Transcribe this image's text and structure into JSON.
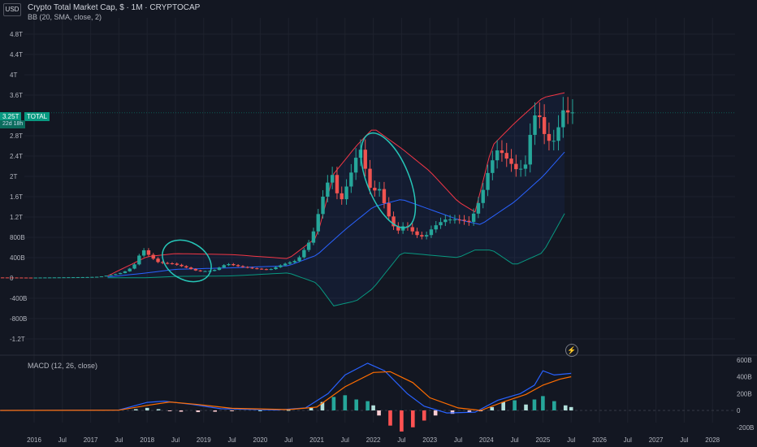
{
  "header": {
    "currency": "USD",
    "title": "Crypto Total Market Cap, $ · 1M · CRYPTOCAP",
    "indicator_bb": "BB (20, SMA, close, 2)",
    "indicator_macd": "MACD (12, 26, close)",
    "last_price": "3.25T",
    "symbol": "TOTAL",
    "countdown": "22d 18h"
  },
  "colors": {
    "background": "#131722",
    "up": "#26a69a",
    "down": "#ef5350",
    "bb_basis": "#2962ff",
    "bb_upper": "#f23645",
    "bb_lower": "#089981",
    "macd_line": "#2962ff",
    "signal_line": "#ff6d00",
    "annotation": "#26c6b8"
  },
  "chart_data": [
    {
      "type": "candlestick",
      "title": "Crypto Total Market Cap, $ · 1M · CRYPTOCAP",
      "y_unit": "USD",
      "ylim": [
        -1400000000000.0,
        5000000000000.0
      ],
      "y_ticks": [
        {
          "v": 4800000000000.0,
          "label": "4.8T"
        },
        {
          "v": 4400000000000.0,
          "label": "4.4T"
        },
        {
          "v": 4000000000000.0,
          "label": "4T"
        },
        {
          "v": 3600000000000.0,
          "label": "3.6T"
        },
        {
          "v": 2800000000000.0,
          "label": "2.8T"
        },
        {
          "v": 2400000000000.0,
          "label": "2.4T"
        },
        {
          "v": 2000000000000.0,
          "label": "2T"
        },
        {
          "v": 1600000000000.0,
          "label": "1.6T"
        },
        {
          "v": 1200000000000.0,
          "label": "1.2T"
        },
        {
          "v": 800000000000.0,
          "label": "800B"
        },
        {
          "v": 400000000000.0,
          "label": "400B"
        },
        {
          "v": 0,
          "label": "0"
        },
        {
          "v": -400000000000.0,
          "label": "-400B"
        },
        {
          "v": -800000000000.0,
          "label": "-800B"
        },
        {
          "v": -1200000000000.0,
          "label": "-1.2T"
        }
      ],
      "x_ticks": [
        {
          "t": 2016.0,
          "label": "2016"
        },
        {
          "t": 2016.5,
          "label": "Jul"
        },
        {
          "t": 2017.0,
          "label": "2017"
        },
        {
          "t": 2017.5,
          "label": "Jul"
        },
        {
          "t": 2018.0,
          "label": "2018"
        },
        {
          "t": 2018.5,
          "label": "Jul"
        },
        {
          "t": 2019.0,
          "label": "2019"
        },
        {
          "t": 2019.5,
          "label": "Jul"
        },
        {
          "t": 2020.0,
          "label": "2020"
        },
        {
          "t": 2020.5,
          "label": "Jul"
        },
        {
          "t": 2021.0,
          "label": "2021"
        },
        {
          "t": 2021.5,
          "label": "Jul"
        },
        {
          "t": 2022.0,
          "label": "2022"
        },
        {
          "t": 2022.5,
          "label": "Jul"
        },
        {
          "t": 2023.0,
          "label": "2023"
        },
        {
          "t": 2023.5,
          "label": "Jul"
        },
        {
          "t": 2024.0,
          "label": "2024"
        },
        {
          "t": 2024.5,
          "label": "Jul"
        },
        {
          "t": 2025.0,
          "label": "2025"
        },
        {
          "t": 2025.5,
          "label": "Jul"
        },
        {
          "t": 2026.0,
          "label": "2026"
        },
        {
          "t": 2026.5,
          "label": "Jul"
        },
        {
          "t": 2027.0,
          "label": "2027"
        },
        {
          "t": 2027.5,
          "label": "Jul"
        },
        {
          "t": 2028.0,
          "label": "2028"
        }
      ],
      "key_points": [
        [
          2015.4,
          10000000000.0
        ],
        [
          2016.0,
          7000000000.0
        ],
        [
          2016.5,
          12000000000.0
        ],
        [
          2017.0,
          18000000000.0
        ],
        [
          2017.2,
          25000000000.0
        ],
        [
          2017.4,
          60000000000.0
        ],
        [
          2017.55,
          90000000000.0
        ],
        [
          2017.7,
          150000000000.0
        ],
        [
          2017.85,
          300000000000.0
        ],
        [
          2017.95,
          580000000000.0
        ],
        [
          2018.1,
          420000000000.0
        ],
        [
          2018.25,
          300000000000.0
        ],
        [
          2018.5,
          280000000000.0
        ],
        [
          2018.75,
          200000000000.0
        ],
        [
          2018.95,
          130000000000.0
        ],
        [
          2019.2,
          140000000000.0
        ],
        [
          2019.45,
          280000000000.0
        ],
        [
          2019.7,
          220000000000.0
        ],
        [
          2019.9,
          190000000000.0
        ],
        [
          2020.2,
          160000000000.0
        ],
        [
          2020.45,
          270000000000.0
        ],
        [
          2020.7,
          350000000000.0
        ],
        [
          2020.95,
          780000000000.0
        ],
        [
          2021.15,
          1600000000000.0
        ],
        [
          2021.3,
          2100000000000.0
        ],
        [
          2021.45,
          1450000000000.0
        ],
        [
          2021.6,
          1900000000000.0
        ],
        [
          2021.8,
          2600000000000.0
        ],
        [
          2022.0,
          1700000000000.0
        ],
        [
          2022.15,
          1750000000000.0
        ],
        [
          2022.3,
          1250000000000.0
        ],
        [
          2022.45,
          900000000000.0
        ],
        [
          2022.6,
          1050000000000.0
        ],
        [
          2022.8,
          850000000000.0
        ],
        [
          2022.95,
          800000000000.0
        ],
        [
          2023.1,
          1000000000000.0
        ],
        [
          2023.3,
          1150000000000.0
        ],
        [
          2023.55,
          1150000000000.0
        ],
        [
          2023.75,
          1100000000000.0
        ],
        [
          2023.95,
          1600000000000.0
        ],
        [
          2024.1,
          2200000000000.0
        ],
        [
          2024.25,
          2550000000000.0
        ],
        [
          2024.4,
          2350000000000.0
        ],
        [
          2024.6,
          2100000000000.0
        ],
        [
          2024.75,
          2250000000000.0
        ],
        [
          2024.85,
          3100000000000.0
        ],
        [
          2024.95,
          3300000000000.0
        ],
        [
          2025.1,
          2700000000000.0
        ],
        [
          2025.25,
          2700000000000.0
        ],
        [
          2025.4,
          3300000000000.0
        ],
        [
          2025.5,
          3250000000000.0
        ]
      ],
      "last_value": 3250000000000.0,
      "bollinger_bands": {
        "label": "BB (20, SMA, close, 2)",
        "basis": [
          [
            2017.3,
            20000000000.0
          ],
          [
            2018.0,
            100000000000.0
          ],
          [
            2018.5,
            170000000000.0
          ],
          [
            2019.5,
            200000000000.0
          ],
          [
            2020.5,
            240000000000.0
          ],
          [
            2021.0,
            450000000000.0
          ],
          [
            2021.5,
            950000000000.0
          ],
          [
            2022.0,
            1400000000000.0
          ],
          [
            2022.5,
            1550000000000.0
          ],
          [
            2023.0,
            1350000000000.0
          ],
          [
            2023.5,
            1150000000000.0
          ],
          [
            2023.9,
            1050000000000.0
          ],
          [
            2024.5,
            1500000000000.0
          ],
          [
            2025.0,
            2000000000000.0
          ],
          [
            2025.4,
            2500000000000.0
          ]
        ],
        "upper": [
          [
            2017.3,
            40000000000.0
          ],
          [
            2018.0,
            420000000000.0
          ],
          [
            2018.5,
            480000000000.0
          ],
          [
            2019.5,
            460000000000.0
          ],
          [
            2020.5,
            380000000000.0
          ],
          [
            2021.0,
            800000000000.0
          ],
          [
            2021.3,
            2050000000000.0
          ],
          [
            2021.7,
            2600000000000.0
          ],
          [
            2022.0,
            2950000000000.0
          ],
          [
            2022.5,
            2550000000000.0
          ],
          [
            2023.0,
            2100000000000.0
          ],
          [
            2023.5,
            1500000000000.0
          ],
          [
            2023.8,
            1300000000000.0
          ],
          [
            2024.1,
            2600000000000.0
          ],
          [
            2024.5,
            3050000000000.0
          ],
          [
            2025.0,
            3550000000000.0
          ],
          [
            2025.4,
            3650000000000.0
          ]
        ],
        "lower": [
          [
            2017.3,
            5000000000.0
          ],
          [
            2018.0,
            5000000000.0
          ],
          [
            2018.5,
            30000000000.0
          ],
          [
            2019.5,
            40000000000.0
          ],
          [
            2020.5,
            100000000000.0
          ],
          [
            2021.0,
            -100000000000.0
          ],
          [
            2021.3,
            -550000000000.0
          ],
          [
            2021.7,
            -450000000000.0
          ],
          [
            2022.0,
            -200000000000.0
          ],
          [
            2022.5,
            500000000000.0
          ],
          [
            2023.0,
            450000000000.0
          ],
          [
            2023.5,
            400000000000.0
          ],
          [
            2023.8,
            550000000000.0
          ],
          [
            2024.1,
            550000000000.0
          ],
          [
            2024.5,
            250000000000.0
          ],
          [
            2025.0,
            500000000000.0
          ],
          [
            2025.4,
            1300000000000.0
          ]
        ]
      }
    },
    {
      "type": "line",
      "title": "MACD (12, 26, close)",
      "ylim": [
        -250000000000.0,
        660000000000.0
      ],
      "y_ticks": [
        {
          "v": 600000000000.0,
          "label": "600B"
        },
        {
          "v": 400000000000.0,
          "label": "400B"
        },
        {
          "v": 200000000000.0,
          "label": "200B"
        },
        {
          "v": 0,
          "label": "0"
        },
        {
          "v": -200000000000.0,
          "label": "-200B"
        }
      ],
      "macd": [
        [
          2015.4,
          0
        ],
        [
          2017.5,
          5000000000.0
        ],
        [
          2018.0,
          95000000000.0
        ],
        [
          2018.3,
          110000000000.0
        ],
        [
          2018.8,
          70000000000.0
        ],
        [
          2019.3,
          20000000000.0
        ],
        [
          2020.3,
          5000000000.0
        ],
        [
          2020.8,
          30000000000.0
        ],
        [
          2021.2,
          200000000000.0
        ],
        [
          2021.5,
          420000000000.0
        ],
        [
          2021.9,
          560000000000.0
        ],
        [
          2022.2,
          470000000000.0
        ],
        [
          2022.6,
          200000000000.0
        ],
        [
          2022.9,
          50000000000.0
        ],
        [
          2023.3,
          -30000000000.0
        ],
        [
          2023.8,
          -20000000000.0
        ],
        [
          2024.2,
          120000000000.0
        ],
        [
          2024.6,
          200000000000.0
        ],
        [
          2024.85,
          300000000000.0
        ],
        [
          2025.0,
          470000000000.0
        ],
        [
          2025.2,
          420000000000.0
        ],
        [
          2025.5,
          440000000000.0
        ]
      ],
      "signal": [
        [
          2015.4,
          0
        ],
        [
          2017.5,
          3000000000.0
        ],
        [
          2018.0,
          60000000000.0
        ],
        [
          2018.4,
          100000000000.0
        ],
        [
          2018.9,
          70000000000.0
        ],
        [
          2019.5,
          25000000000.0
        ],
        [
          2020.5,
          10000000000.0
        ],
        [
          2021.0,
          40000000000.0
        ],
        [
          2021.5,
          280000000000.0
        ],
        [
          2022.0,
          450000000000.0
        ],
        [
          2022.3,
          460000000000.0
        ],
        [
          2022.7,
          330000000000.0
        ],
        [
          2023.0,
          150000000000.0
        ],
        [
          2023.5,
          30000000000.0
        ],
        [
          2023.9,
          0
        ],
        [
          2024.3,
          100000000000.0
        ],
        [
          2024.7,
          190000000000.0
        ],
        [
          2025.0,
          300000000000.0
        ],
        [
          2025.3,
          370000000000.0
        ],
        [
          2025.5,
          400000000000.0
        ]
      ],
      "histogram": [
        [
          2017.8,
          15000000000.0
        ],
        [
          2018.0,
          30000000000.0
        ],
        [
          2018.2,
          15000000000.0
        ],
        [
          2018.4,
          -5000000000.0
        ],
        [
          2018.6,
          -15000000000.0
        ],
        [
          2018.9,
          -20000000000.0
        ],
        [
          2019.2,
          -15000000000.0
        ],
        [
          2019.5,
          -5000000000.0
        ],
        [
          2020.0,
          0
        ],
        [
          2020.5,
          5000000000.0
        ],
        [
          2020.9,
          30000000000.0
        ],
        [
          2021.1,
          100000000000.0
        ],
        [
          2021.3,
          160000000000.0
        ],
        [
          2021.5,
          180000000000.0
        ],
        [
          2021.7,
          130000000000.0
        ],
        [
          2021.9,
          110000000000.0
        ],
        [
          2022.0,
          60000000000.0
        ],
        [
          2022.1,
          -60000000000.0
        ],
        [
          2022.3,
          -180000000000.0
        ],
        [
          2022.5,
          -250000000000.0
        ],
        [
          2022.7,
          -200000000000.0
        ],
        [
          2022.9,
          -120000000000.0
        ],
        [
          2023.1,
          -60000000000.0
        ],
        [
          2023.4,
          -40000000000.0
        ],
        [
          2023.7,
          -25000000000.0
        ],
        [
          2023.9,
          -10000000000.0
        ],
        [
          2024.1,
          40000000000.0
        ],
        [
          2024.3,
          100000000000.0
        ],
        [
          2024.5,
          120000000000.0
        ],
        [
          2024.7,
          70000000000.0
        ],
        [
          2024.85,
          130000000000.0
        ],
        [
          2025.0,
          170000000000.0
        ],
        [
          2025.2,
          110000000000.0
        ],
        [
          2025.4,
          60000000000.0
        ],
        [
          2025.5,
          40000000000.0
        ]
      ]
    }
  ]
}
